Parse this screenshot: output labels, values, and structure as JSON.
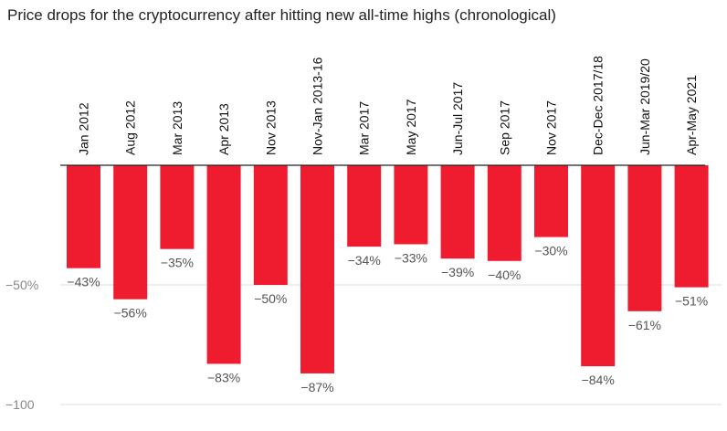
{
  "chart_data": {
    "type": "bar",
    "title": "Price drops for the cryptocurrency after hitting new all-time highs (chronological)",
    "categories": [
      "Jan 2012",
      "Aug 2012",
      "Mar 2013",
      "Apr 2013",
      "Nov 2013",
      "Nov-Jan 2013-16",
      "Mar 2017",
      "May 2017",
      "Jun-Jul 2017",
      "Sep 2017",
      "Nov 2017",
      "Dec-Dec 2017/18",
      "Jun-Mar 2019/20",
      "Apr-May 2021"
    ],
    "values": [
      -43,
      -56,
      -35,
      -83,
      -50,
      -87,
      -34,
      -33,
      -39,
      -40,
      -30,
      -84,
      -61,
      -51
    ],
    "value_labels": [
      "−43%",
      "−56%",
      "−35%",
      "−83%",
      "−50%",
      "−87%",
      "−34%",
      "−33%",
      "−39%",
      "−40%",
      "−30%",
      "−84%",
      "−61%",
      "−51%"
    ],
    "y_ticks": [
      -50,
      -100
    ],
    "y_tick_labels": [
      "−50%",
      "−100"
    ],
    "ylim": [
      -100,
      0
    ],
    "grid": true,
    "colors": {
      "bar": "#ee1c2e",
      "grid": "#dddddd",
      "baseline": "#222222"
    }
  }
}
